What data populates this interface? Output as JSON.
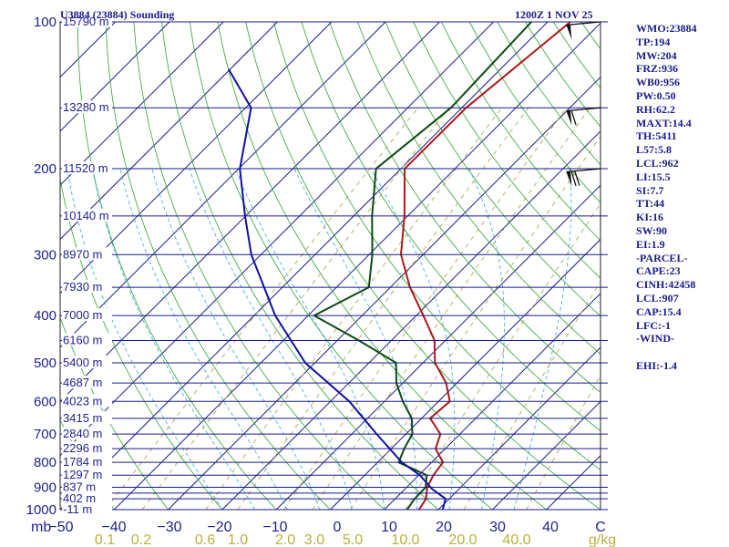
{
  "chart_data": {
    "type": "skew-t",
    "title_left": "U3884 (23884) Sounding",
    "title_right": "1200Z  1 NOV 25",
    "pressure_axis_label": "mb",
    "pressure_ticks": [
      100,
      200,
      300,
      400,
      500,
      600,
      700,
      800,
      900,
      1000
    ],
    "pressure_lines": [
      100,
      150,
      200,
      250,
      300,
      350,
      400,
      450,
      500,
      550,
      600,
      650,
      700,
      750,
      800,
      850,
      900,
      925,
      950,
      1000
    ],
    "temp_ticks": [
      "−50",
      "−40",
      "−30",
      "−20",
      "−10",
      "0",
      "10",
      "20",
      "30",
      "40",
      "C"
    ],
    "temp_range": [
      -50,
      50
    ],
    "mixing_ratio_labels": [
      "0.1",
      "0.2",
      "0.6",
      "1.0",
      "2.0",
      "3.0",
      "5.0",
      "10.0",
      "20.0",
      "40.0",
      "g/kg"
    ],
    "height_labels": [
      {
        "p": 100,
        "text": "15790 m"
      },
      {
        "p": 150,
        "text": "13280 m"
      },
      {
        "p": 200,
        "text": "11520 m"
      },
      {
        "p": 250,
        "text": "10140 m"
      },
      {
        "p": 300,
        "text": "8970 m"
      },
      {
        "p": 350,
        "text": "7930 m"
      },
      {
        "p": 400,
        "text": "7000 m"
      },
      {
        "p": 450,
        "text": "6160 m"
      },
      {
        "p": 500,
        "text": "5400 m"
      },
      {
        "p": 550,
        "text": "4687 m"
      },
      {
        "p": 600,
        "text": "4023 m"
      },
      {
        "p": 650,
        "text": "3415 m"
      },
      {
        "p": 700,
        "text": "2840 m"
      },
      {
        "p": 750,
        "text": "2296 m"
      },
      {
        "p": 800,
        "text": "1784 m"
      },
      {
        "p": 850,
        "text": "1297 m"
      },
      {
        "p": 900,
        "text": "837 m"
      },
      {
        "p": 950,
        "text": "402 m"
      },
      {
        "p": 1000,
        "text": "-11 m"
      }
    ],
    "series": [
      {
        "name": "temperature",
        "color": "#b01818",
        "points": [
          {
            "p": 100,
            "t": -45.8
          },
          {
            "p": 150,
            "t": -49.2
          },
          {
            "p": 200,
            "t": -49.3
          },
          {
            "p": 250,
            "t": -40.6
          },
          {
            "p": 300,
            "t": -34.1
          },
          {
            "p": 350,
            "t": -26.4
          },
          {
            "p": 400,
            "t": -18.7
          },
          {
            "p": 450,
            "t": -12.0
          },
          {
            "p": 500,
            "t": -7.8
          },
          {
            "p": 550,
            "t": -2.0
          },
          {
            "p": 600,
            "t": 2.1
          },
          {
            "p": 650,
            "t": 1.6
          },
          {
            "p": 700,
            "t": 6.4
          },
          {
            "p": 750,
            "t": 8.2
          },
          {
            "p": 800,
            "t": 12.1
          },
          {
            "p": 850,
            "t": 12.7
          },
          {
            "p": 900,
            "t": 13.8
          },
          {
            "p": 950,
            "t": 15.7
          },
          {
            "p": 1000,
            "t": 16.4
          }
        ]
      },
      {
        "name": "dewpoint",
        "color": "#0d4a12",
        "points": [
          {
            "p": 100,
            "t": -53.0
          },
          {
            "p": 150,
            "t": -52.0
          },
          {
            "p": 200,
            "t": -54.6
          },
          {
            "p": 250,
            "t": -46.6
          },
          {
            "p": 300,
            "t": -39.4
          },
          {
            "p": 350,
            "t": -34.0
          },
          {
            "p": 400,
            "t": -38.9
          },
          {
            "p": 450,
            "t": -26.0
          },
          {
            "p": 500,
            "t": -15.0
          },
          {
            "p": 550,
            "t": -11.2
          },
          {
            "p": 600,
            "t": -6.6
          },
          {
            "p": 650,
            "t": -1.8
          },
          {
            "p": 700,
            "t": 1.2
          },
          {
            "p": 750,
            "t": 2.4
          },
          {
            "p": 800,
            "t": 3.9
          },
          {
            "p": 850,
            "t": 11.5
          },
          {
            "p": 900,
            "t": 13.5
          },
          {
            "p": 950,
            "t": 13.6
          },
          {
            "p": 1000,
            "t": 14.2
          }
        ]
      },
      {
        "name": "parcel",
        "color": "#1010a0",
        "points": [
          {
            "p": 125,
            "t": -100.3
          },
          {
            "p": 150,
            "t": -89.0
          },
          {
            "p": 200,
            "t": -79.8
          },
          {
            "p": 250,
            "t": -70.1
          },
          {
            "p": 300,
            "t": -61.8
          },
          {
            "p": 400,
            "t": -46.1
          },
          {
            "p": 500,
            "t": -31.8
          },
          {
            "p": 600,
            "t": -16.5
          },
          {
            "p": 700,
            "t": -5.4
          },
          {
            "p": 800,
            "t": 4.5
          },
          {
            "p": 850,
            "t": 10.2
          },
          {
            "p": 907,
            "t": 15.0
          },
          {
            "p": 950,
            "t": 19.3
          },
          {
            "p": 1000,
            "t": 20.8
          }
        ]
      }
    ],
    "wind_barbs": [
      {
        "p": 150,
        "speed_kt": 60
      },
      {
        "p": 200,
        "speed_kt": 75
      },
      {
        "p": 100,
        "speed_kt": 50
      }
    ],
    "stats": [
      "WMO:23884",
      "TP:194",
      "MW:204",
      "FRZ:936",
      "WB0:956",
      "PW:0.50",
      "RH:62.2",
      "MAXT:14.4",
      "TH:5411",
      "L57:5.8",
      "LCL:962",
      "LI:15.5",
      "SI:7.7",
      "TT:44",
      "KI:16",
      "SW:90",
      "EI:1.9",
      "-PARCEL-",
      "CAPE:23",
      "CINH:42458",
      "LCL:907",
      "CAP:15.4",
      "LFC:-1",
      "-WIND-",
      "",
      "EHI:-1.4"
    ]
  }
}
